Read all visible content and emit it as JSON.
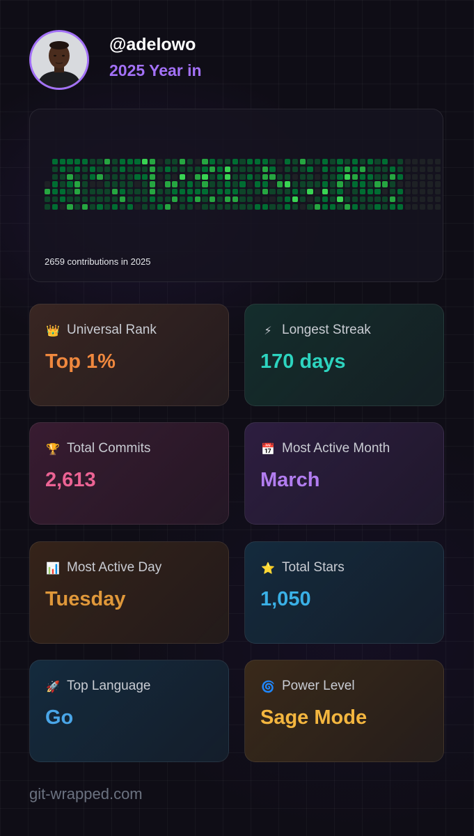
{
  "profile": {
    "username": "@adelowo",
    "year_label": "2025 Year in",
    "accent_color": "#a371f7"
  },
  "contributions": {
    "caption": "2659 contributions in 2025",
    "weeks": 53,
    "days_per_week": 7,
    "active_weeks": 48,
    "level_colors": [
      "#1e2125",
      "#0e4429",
      "#006d32",
      "#26a641",
      "#39d353"
    ]
  },
  "stats": [
    {
      "icon": "crown-icon",
      "emoji": "👑",
      "label": "Universal Rank",
      "value": "Top 1%",
      "color": "#f0883e",
      "tint": "#f0883e"
    },
    {
      "icon": "lightning-icon",
      "emoji": "⚡",
      "label": "Longest Streak",
      "value": "170 days",
      "color": "#2dd4bf",
      "tint": "#10b981"
    },
    {
      "icon": "trophy-icon",
      "emoji": "🏆",
      "label": "Total Commits",
      "value": "2,613",
      "color": "#ec6394",
      "tint": "#ec4899"
    },
    {
      "icon": "calendar-icon",
      "emoji": "📅",
      "label": "Most Active Month",
      "value": "March",
      "color": "#b27df0",
      "tint": "#a855f7"
    },
    {
      "icon": "bar-chart-icon",
      "emoji": "📊",
      "label": "Most Active Day",
      "value": "Tuesday",
      "color": "#e0983a",
      "tint": "#d97706"
    },
    {
      "icon": "star-icon",
      "emoji": "⭐",
      "label": "Total Stars",
      "value": "1,050",
      "color": "#3ab0e6",
      "tint": "#0ea5e9"
    },
    {
      "icon": "rocket-icon",
      "emoji": "🚀",
      "label": "Top Language",
      "value": "Go",
      "color": "#4aa6e8",
      "tint": "#0ea5e9"
    },
    {
      "icon": "cyclone-icon",
      "emoji": "🌀",
      "label": "Power Level",
      "value": "Sage Mode",
      "color": "#f4b63f",
      "tint": "#f59e0b"
    }
  ],
  "footer": {
    "site": "git-wrapped.com"
  }
}
